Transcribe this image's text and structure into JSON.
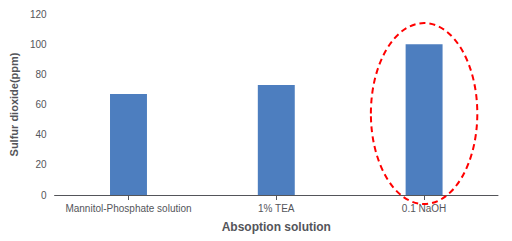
{
  "chart_data": {
    "type": "bar",
    "categories": [
      "Mannitol-Phosphate solution",
      "1% TEA",
      "0.1 NaOH"
    ],
    "values": [
      67,
      73,
      100
    ],
    "color": "#4d7ebf",
    "xlabel": "Absoption solution",
    "ylabel": "Sulfur dioxide(ppm)",
    "ylim": [
      0,
      120
    ],
    "yticks": [
      0,
      20,
      40,
      60,
      80,
      100,
      120
    ],
    "grid": false
  }
}
